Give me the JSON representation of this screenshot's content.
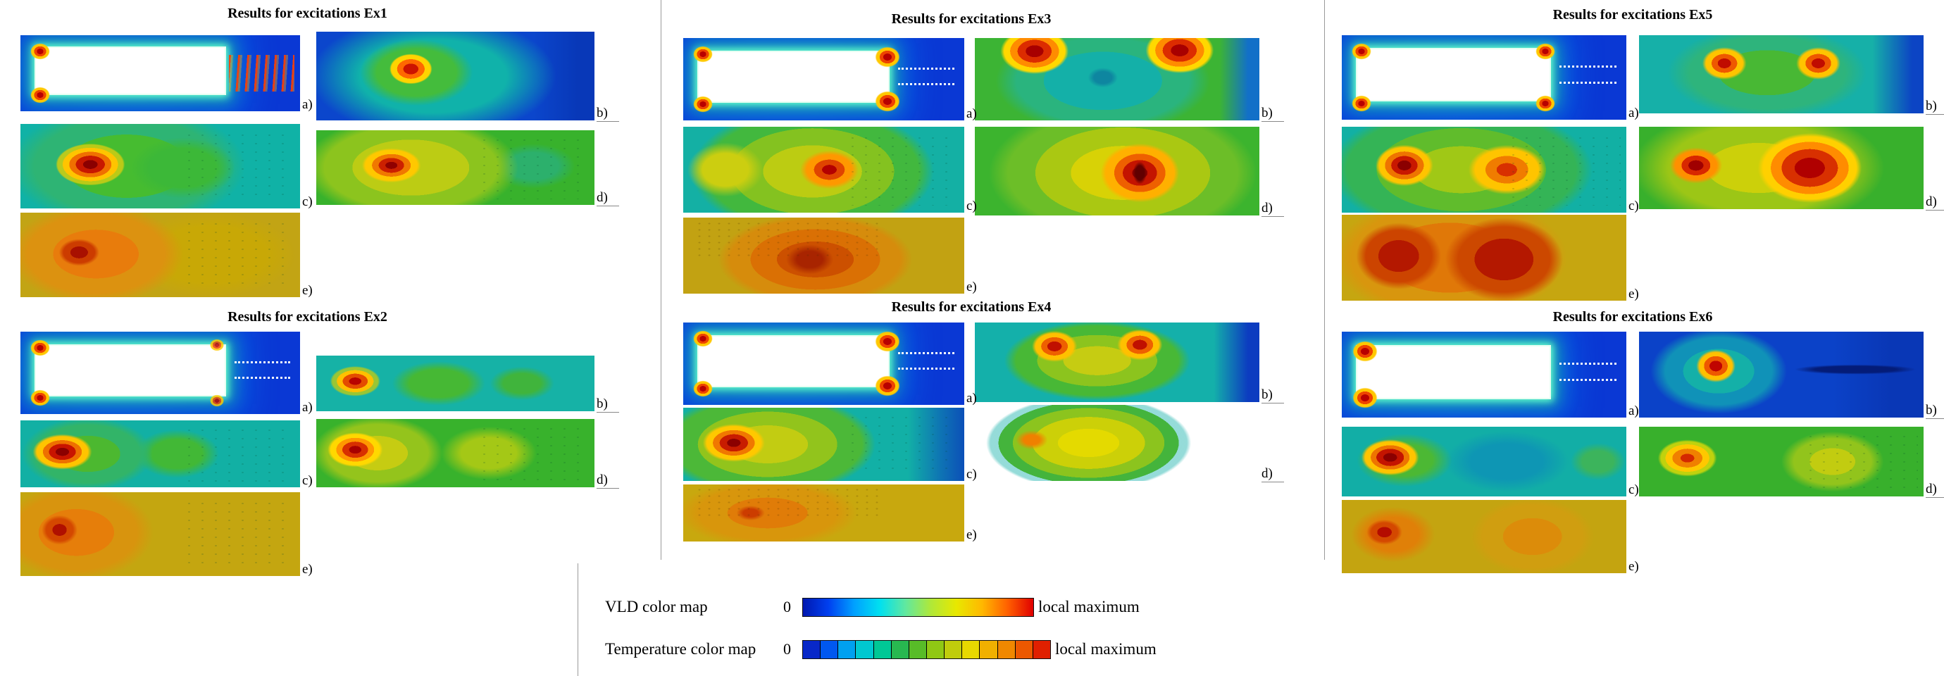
{
  "page": {
    "background": "#ffffff",
    "specimen_color": "#ffffff"
  },
  "groups": [
    {
      "id": "Ex1",
      "title": "Results for excitations Ex1",
      "panels": [
        {
          "label": "a)"
        },
        {
          "label": "b)"
        },
        {
          "label": "c)"
        },
        {
          "label": "d)"
        },
        {
          "label": "e)"
        }
      ]
    },
    {
      "id": "Ex2",
      "title": "Results for excitations Ex2",
      "panels": [
        {
          "label": "a)"
        },
        {
          "label": "b)"
        },
        {
          "label": "c)"
        },
        {
          "label": "d)"
        },
        {
          "label": "e)"
        }
      ]
    },
    {
      "id": "Ex3",
      "title": "Results for excitations Ex3",
      "panels": [
        {
          "label": "a)"
        },
        {
          "label": "b)"
        },
        {
          "label": "c)"
        },
        {
          "label": "d)"
        },
        {
          "label": "e)"
        }
      ]
    },
    {
      "id": "Ex4",
      "title": "Results for excitations Ex4",
      "panels": [
        {
          "label": "a)"
        },
        {
          "label": "b)"
        },
        {
          "label": "c)"
        },
        {
          "label": "d)"
        },
        {
          "label": "e)"
        }
      ]
    },
    {
      "id": "Ex5",
      "title": "Results for excitations Ex5",
      "panels": [
        {
          "label": "a)"
        },
        {
          "label": "b)"
        },
        {
          "label": "c)"
        },
        {
          "label": "d)"
        },
        {
          "label": "e)"
        }
      ]
    },
    {
      "id": "Ex6",
      "title": "Results for excitations Ex6",
      "panels": [
        {
          "label": "a)"
        },
        {
          "label": "b)"
        },
        {
          "label": "c)"
        },
        {
          "label": "d)"
        },
        {
          "label": "e)"
        }
      ]
    }
  ],
  "legend": {
    "vld": {
      "label": "VLD color map",
      "min": "0",
      "max": "local maximum",
      "colors": [
        "#0018b0",
        "#0040f0",
        "#00a0ff",
        "#00e0f0",
        "#60e8a0",
        "#b0e838",
        "#e8e800",
        "#ffb800",
        "#ff6000",
        "#e00000"
      ]
    },
    "temperature": {
      "label": "Temperature color map",
      "min": "0",
      "max": "local maximum",
      "colors": [
        "#0828c8",
        "#0058f0",
        "#00a0f0",
        "#00c8d0",
        "#00c896",
        "#28b850",
        "#58bc28",
        "#90c814",
        "#c0cc0c",
        "#e8d800",
        "#f0b000",
        "#f08800",
        "#ec5800",
        "#e02000"
      ]
    }
  },
  "chart_data": [
    {
      "type": "heatmap",
      "title": "Results for excitations Ex1",
      "value_range": [
        "0",
        "local maximum"
      ],
      "panels": [
        {
          "label": "a)",
          "content": "VLD field around white specimen plate on blue low-amplitude field; maxima along plate edges and left corners; red excitation fringes right of plate",
          "max_regions": [
            {
              "x": 0.04,
              "y": 0.2
            },
            {
              "x": 0.04,
              "y": 0.8
            }
          ]
        },
        {
          "label": "b)",
          "content": "field map, teal-green blob on blue, dark band at right",
          "max_regions": [
            {
              "x": 0.36,
              "y": 0.44
            }
          ]
        },
        {
          "label": "c)",
          "content": "green blob on teal with hot core",
          "max_regions": [
            {
              "x": 0.25,
              "y": 0.48
            }
          ]
        },
        {
          "label": "d)",
          "content": "yellow-green blob on green with hot core",
          "max_regions": [
            {
              "x": 0.27,
              "y": 0.47
            }
          ]
        },
        {
          "label": "e)",
          "content": "orange blob on olive with red core",
          "max_regions": [
            {
              "x": 0.21,
              "y": 0.47
            }
          ]
        }
      ]
    },
    {
      "type": "heatmap",
      "title": "Results for excitations Ex2",
      "value_range": [
        "0",
        "local maximum"
      ],
      "panels": [
        {
          "label": "a)",
          "content": "specimen plate on blue field; maxima at plate corners; white dashed lines right of plate",
          "max_regions": [
            {
              "x": 0.04,
              "y": 0.2
            },
            {
              "x": 0.04,
              "y": 0.8
            },
            {
              "x": 0.7,
              "y": 0.2
            },
            {
              "x": 0.7,
              "y": 0.8
            }
          ]
        },
        {
          "label": "b)",
          "content": "red maximum left, green lobes centre and right on teal",
          "max_regions": [
            {
              "x": 0.14,
              "y": 0.46
            }
          ]
        },
        {
          "label": "c)",
          "content": "hot core at left on green/teal",
          "max_regions": [
            {
              "x": 0.15,
              "y": 0.47
            }
          ]
        },
        {
          "label": "d)",
          "content": "hot core at left, yellow-green lobes",
          "max_regions": [
            {
              "x": 0.14,
              "y": 0.45
            }
          ]
        },
        {
          "label": "e)",
          "content": "orange blob left with red core on olive",
          "max_regions": [
            {
              "x": 0.14,
              "y": 0.45
            }
          ]
        }
      ]
    },
    {
      "type": "heatmap",
      "title": "Results for excitations Ex3",
      "value_range": [
        "0",
        "local maximum"
      ],
      "panels": [
        {
          "label": "a)",
          "content": "specimen plate on blue; strong maxima at left and right plate corners; white dashed lines",
          "max_regions": [
            {
              "x": 0.04,
              "y": 0.2
            },
            {
              "x": 0.04,
              "y": 0.8
            },
            {
              "x": 0.7,
              "y": 0.2
            },
            {
              "x": 0.7,
              "y": 0.8
            }
          ]
        },
        {
          "label": "b)",
          "content": "two red maxima near top edge, teal core centre, green field",
          "max_regions": [
            {
              "x": 0.21,
              "y": 0.16
            },
            {
              "x": 0.72,
              "y": 0.15
            }
          ]
        },
        {
          "label": "c)",
          "content": "yellow-green blob with hot centre",
          "max_regions": [
            {
              "x": 0.52,
              "y": 0.5
            }
          ]
        },
        {
          "label": "d)",
          "content": "large yellow blob with red core and dark slit",
          "max_regions": [
            {
              "x": 0.58,
              "y": 0.52
            }
          ]
        },
        {
          "label": "e)",
          "content": "large dark-orange blob centre on olive, speckled top",
          "max_regions": [
            {
              "x": 0.46,
              "y": 0.55
            }
          ]
        }
      ]
    },
    {
      "type": "heatmap",
      "title": "Results for excitations Ex4",
      "value_range": [
        "0",
        "local maximum"
      ],
      "panels": [
        {
          "label": "a)",
          "content": "specimen plate on blue; maxima at all plate corners; white dashed lines",
          "max_regions": [
            {
              "x": 0.04,
              "y": 0.2
            },
            {
              "x": 0.04,
              "y": 0.8
            },
            {
              "x": 0.7,
              "y": 0.2
            },
            {
              "x": 0.7,
              "y": 0.8
            }
          ]
        },
        {
          "label": "b)",
          "content": "yellow-green blob with two orange maxima near top, dark blue band right",
          "max_regions": [
            {
              "x": 0.28,
              "y": 0.3
            },
            {
              "x": 0.58,
              "y": 0.28
            }
          ]
        },
        {
          "label": "c)",
          "content": "yellow-green blob left with hot core, blue band right",
          "max_regions": [
            {
              "x": 0.18,
              "y": 0.48
            }
          ]
        },
        {
          "label": "d)",
          "content": "rounded yellow-green blob on white background, mild orange spot",
          "max_regions": [
            {
              "x": 0.2,
              "y": 0.46
            }
          ]
        },
        {
          "label": "e)",
          "content": "orange blob left-centre on olive-yellow",
          "max_regions": [
            {
              "x": 0.24,
              "y": 0.5
            }
          ]
        }
      ]
    },
    {
      "type": "heatmap",
      "title": "Results for excitations Ex5",
      "value_range": [
        "0",
        "local maximum"
      ],
      "panels": [
        {
          "label": "a)",
          "content": "specimen plate on blue; maxima at left and right plate corners; white dashed lines",
          "max_regions": [
            {
              "x": 0.04,
              "y": 0.2
            },
            {
              "x": 0.04,
              "y": 0.8
            },
            {
              "x": 0.7,
              "y": 0.2
            },
            {
              "x": 0.7,
              "y": 0.8
            }
          ]
        },
        {
          "label": "b)",
          "content": "green blob with two red maxima, dark blue band right",
          "max_regions": [
            {
              "x": 0.3,
              "y": 0.36
            },
            {
              "x": 0.63,
              "y": 0.36
            }
          ]
        },
        {
          "label": "c)",
          "content": "two hot cores on green-yellow blob",
          "max_regions": [
            {
              "x": 0.22,
              "y": 0.45
            },
            {
              "x": 0.58,
              "y": 0.5
            }
          ]
        },
        {
          "label": "d)",
          "content": "red core left and large red blob right on yellow/green",
          "max_regions": [
            {
              "x": 0.2,
              "y": 0.47
            },
            {
              "x": 0.6,
              "y": 0.5
            }
          ]
        },
        {
          "label": "e)",
          "content": "two large dark-red blobs joined by orange on olive",
          "max_regions": [
            {
              "x": 0.2,
              "y": 0.48
            },
            {
              "x": 0.57,
              "y": 0.52
            }
          ]
        }
      ]
    },
    {
      "type": "heatmap",
      "title": "Results for excitations Ex6",
      "value_range": [
        "0",
        "local maximum"
      ],
      "panels": [
        {
          "label": "a)",
          "content": "specimen plate on blue; strong maxima at left plate corners; white dashed lines",
          "max_regions": [
            {
              "x": 0.04,
              "y": 0.2
            },
            {
              "x": 0.04,
              "y": 0.8
            }
          ]
        },
        {
          "label": "b)",
          "content": "teal blob with red core on dark blue, dark navy streak right",
          "max_regions": [
            {
              "x": 0.27,
              "y": 0.4
            }
          ]
        },
        {
          "label": "c)",
          "content": "hot core left on green/teal, darker region centre-right",
          "max_regions": [
            {
              "x": 0.17,
              "y": 0.44
            }
          ]
        },
        {
          "label": "d)",
          "content": "orange maximum left, yellow-green lobe right on green",
          "max_regions": [
            {
              "x": 0.17,
              "y": 0.45
            }
          ]
        },
        {
          "label": "e)",
          "content": "red spot left and orange blob right on olive",
          "max_regions": [
            {
              "x": 0.15,
              "y": 0.44
            },
            {
              "x": 0.67,
              "y": 0.5
            }
          ]
        }
      ]
    }
  ]
}
